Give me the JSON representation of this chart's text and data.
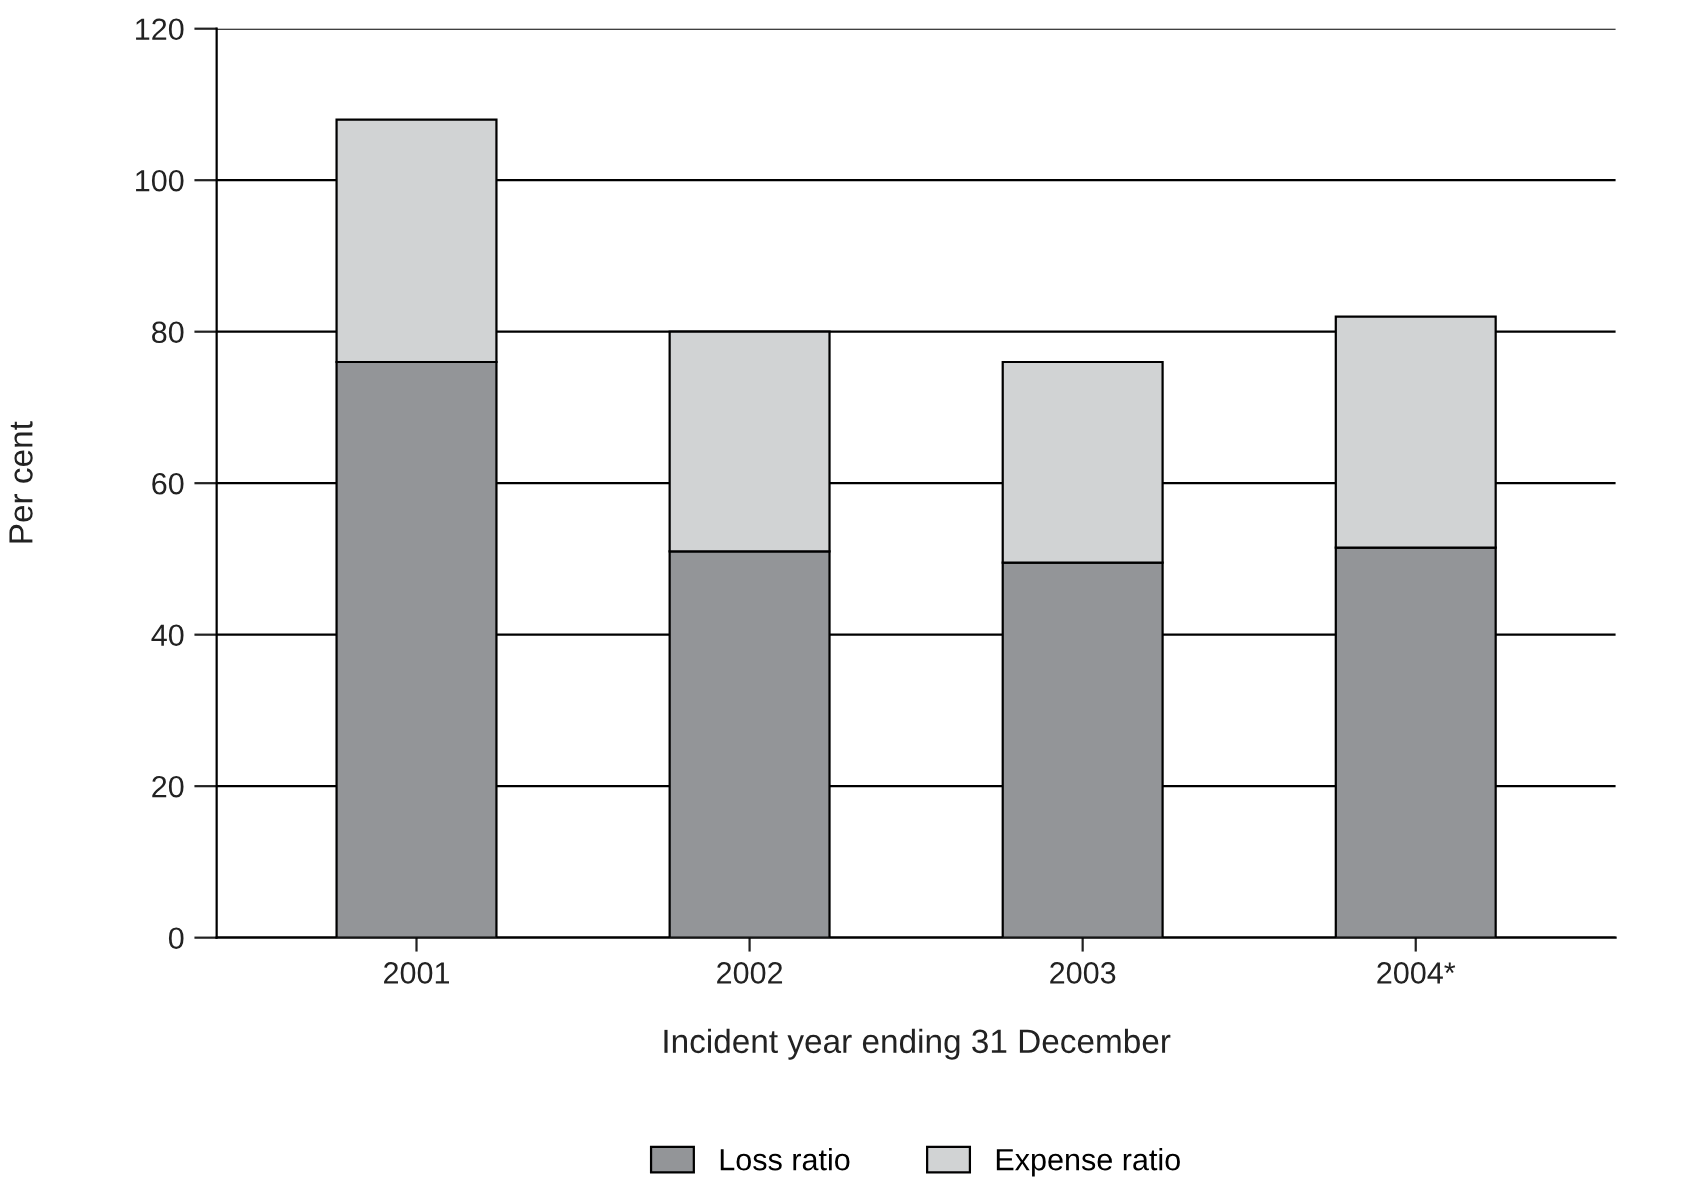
{
  "chart_data": {
    "type": "bar",
    "stacked": true,
    "xlabel": "Incident year ending 31 December",
    "ylabel": "Per cent",
    "categories": [
      "2001",
      "2002",
      "2003",
      "2004*"
    ],
    "series": [
      {
        "name": "Loss ratio",
        "color": "#939598",
        "values": [
          76,
          51,
          49.5,
          51.5
        ]
      },
      {
        "name": "Expense ratio",
        "color": "#d1d3d4",
        "values": [
          32,
          29,
          26.5,
          30.5
        ]
      }
    ],
    "ylim": [
      0,
      120
    ],
    "yticks": [
      0,
      20,
      40,
      60,
      80,
      100,
      120
    ],
    "grid": "y",
    "legend": "bottom"
  }
}
